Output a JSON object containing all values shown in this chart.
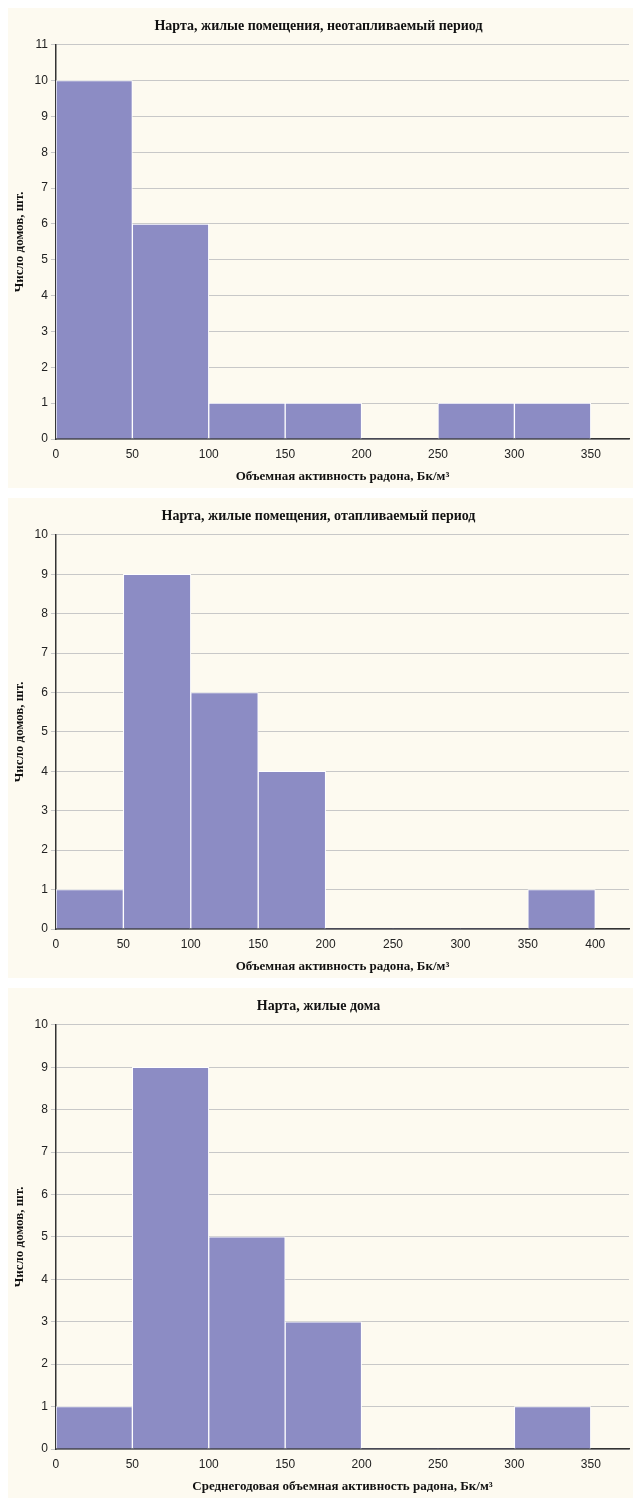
{
  "chart_data": [
    {
      "type": "histogram",
      "title": "Нарта, жилые помещения, неотапливаемый период",
      "xlabel": "Объемная активность радона, Бк/м³",
      "ylabel": "Число домов, шт.",
      "bins": [
        0,
        50,
        100,
        150,
        200,
        250,
        300,
        350
      ],
      "values": [
        10,
        6,
        1,
        1,
        0,
        1,
        1
      ],
      "color": "#8c8cc4",
      "xlim": [
        0,
        375
      ],
      "xticks": [
        0,
        50,
        100,
        150,
        200,
        250,
        300,
        350
      ],
      "ylim": [
        0,
        11
      ],
      "yticks": [
        0,
        1,
        2,
        3,
        4,
        5,
        6,
        7,
        8,
        9,
        10,
        11
      ],
      "grid": "y"
    },
    {
      "type": "histogram",
      "title": "Нарта, жилые помещения, отапливаемый период",
      "xlabel": "Объемная активность радона, Бк/м³",
      "ylabel": "Число домов, шт.",
      "bins": [
        0,
        50,
        100,
        150,
        200,
        250,
        300,
        350,
        400
      ],
      "values": [
        1,
        9,
        6,
        4,
        0,
        0,
        0,
        1
      ],
      "color": "#8c8cc4",
      "xlim": [
        0,
        425
      ],
      "xticks": [
        0,
        50,
        100,
        150,
        200,
        250,
        300,
        350,
        400
      ],
      "ylim": [
        0,
        10
      ],
      "yticks": [
        0,
        1,
        2,
        3,
        4,
        5,
        6,
        7,
        8,
        9,
        10
      ],
      "grid": "y"
    },
    {
      "type": "histogram",
      "title": "Нарта, жилые дома",
      "xlabel": "Среднегодовая объемная активность радона, Бк/м³",
      "ylabel": "Число домов, шт.",
      "bins": [
        0,
        50,
        100,
        150,
        200,
        250,
        300,
        350
      ],
      "values": [
        1,
        9,
        5,
        3,
        0,
        0,
        1
      ],
      "color": "#8c8cc4",
      "xlim": [
        0,
        375
      ],
      "xticks": [
        0,
        50,
        100,
        150,
        200,
        250,
        300,
        350
      ],
      "ylim": [
        0,
        10
      ],
      "yticks": [
        0,
        1,
        2,
        3,
        4,
        5,
        6,
        7,
        8,
        9,
        10
      ],
      "grid": "y"
    }
  ]
}
